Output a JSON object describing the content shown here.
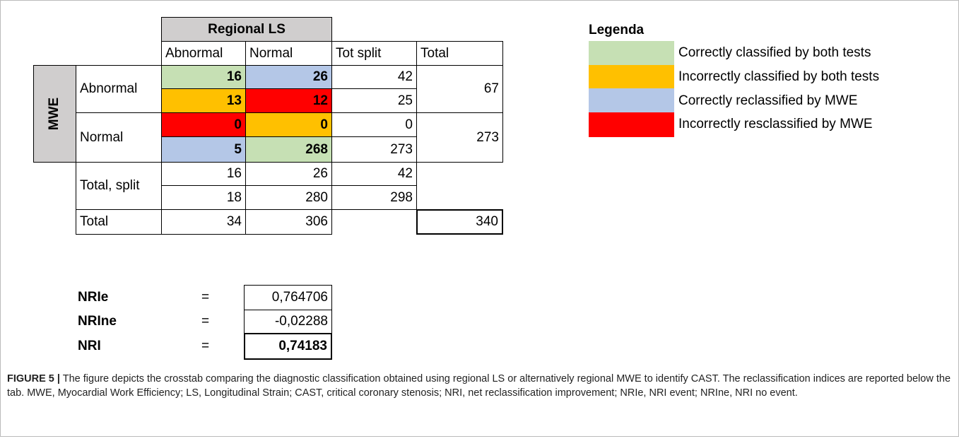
{
  "table": {
    "group_header": "Regional LS",
    "columns": [
      "Abnormal",
      "Normal",
      "Tot split",
      "Total"
    ],
    "row_group": "MWE",
    "rows": [
      {
        "label": "Abnormal",
        "cells": [
          [
            16,
            26,
            42
          ],
          [
            13,
            12,
            25
          ]
        ],
        "total": 67,
        "colors": [
          [
            "#c6e0b4",
            "#b4c7e7"
          ],
          [
            "#ffc000",
            "#ff0000"
          ]
        ]
      },
      {
        "label": "Normal",
        "cells": [
          [
            0,
            0,
            0
          ],
          [
            5,
            268,
            273
          ]
        ],
        "total": 273,
        "colors": [
          [
            "#ff0000",
            "#ffc000"
          ],
          [
            "#b4c7e7",
            "#c6e0b4"
          ]
        ]
      },
      {
        "label": "Total, split",
        "cells": [
          [
            16,
            26,
            42
          ],
          [
            18,
            280,
            298
          ]
        ]
      },
      {
        "label": "Total",
        "cells": [
          34,
          306
        ],
        "total": 340
      }
    ]
  },
  "legend": {
    "title": "Legenda",
    "items": [
      {
        "label": "Correctly classified by both tests",
        "color": "#c6e0b4"
      },
      {
        "label": "Incorrectly classified by both tests",
        "color": "#ffc000"
      },
      {
        "label": "Correctly reclassified by MWE",
        "color": "#b4c7e7"
      },
      {
        "label": "Incorrectly resclassified by MWE",
        "color": "#ff0000"
      }
    ]
  },
  "indices": [
    {
      "label": "NRIe",
      "sign": "=",
      "value": "0,764706"
    },
    {
      "label": "NRIne",
      "sign": "=",
      "value": "-0,02288"
    },
    {
      "label": "NRI",
      "sign": "=",
      "value": "0,74183"
    }
  ],
  "caption": {
    "label": "FIGURE 5 |",
    "text": "The figure depicts the crosstab comparing the diagnostic classification obtained using regional LS or alternatively regional MWE to identify CAST. The reclassification indices are reported below the tab. MWE, Myocardial Work Efficiency; LS, Longitudinal Strain; CAST, critical coronary stenosis; NRI, net reclassification improvement; NRIe, NRI event; NRIne, NRI no event."
  }
}
